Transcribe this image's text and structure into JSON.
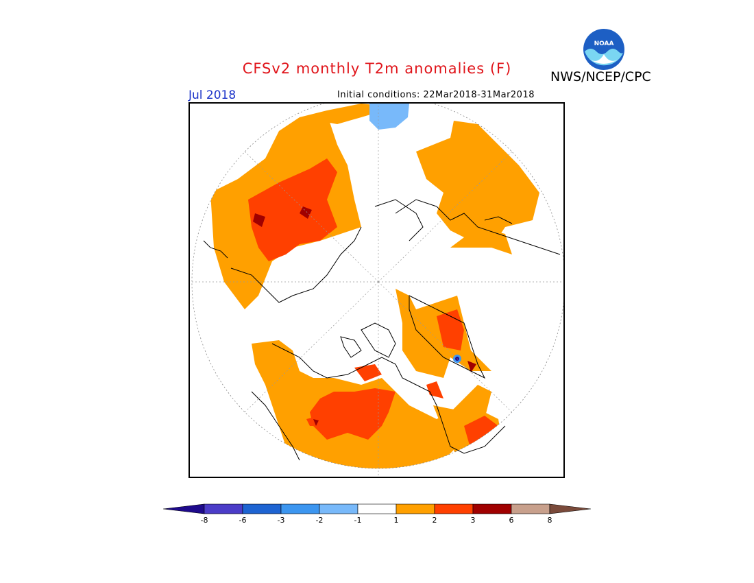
{
  "header": {
    "title": "CFSv2 monthly T2m anomalies (F)",
    "credit": "NWS/NCEP/CPC",
    "logo_text": "NOAA",
    "target_month": "Jul 2018",
    "initial_conditions": "Initial conditions: 22Mar2018-31Mar2018"
  },
  "map": {
    "projection": "north polar stereographic",
    "field": "2m temperature anomaly forecast",
    "units": "F"
  },
  "legend": {
    "tick_labels": [
      "-8",
      "-6",
      "-3",
      "-2",
      "-1",
      "1",
      "2",
      "3",
      "6",
      "8"
    ],
    "bins": [
      {
        "range": "< -8",
        "color": "#1e0a8c"
      },
      {
        "range": "-8 to -6",
        "color": "#4b3cc8"
      },
      {
        "range": "-6 to -3",
        "color": "#1e64d2"
      },
      {
        "range": "-3 to -2",
        "color": "#3c96f0"
      },
      {
        "range": "-2 to -1",
        "color": "#78b9fa"
      },
      {
        "range": "-1 to 1",
        "color": "#ffffff"
      },
      {
        "range": "1 to 2",
        "color": "#ffa000"
      },
      {
        "range": "2 to 3",
        "color": "#ff4000"
      },
      {
        "range": "3 to 6",
        "color": "#a00000"
      },
      {
        "range": "6 to 8",
        "color": "#c8a08c"
      },
      {
        "range": "> 8",
        "color": "#7a4a3a"
      }
    ]
  }
}
